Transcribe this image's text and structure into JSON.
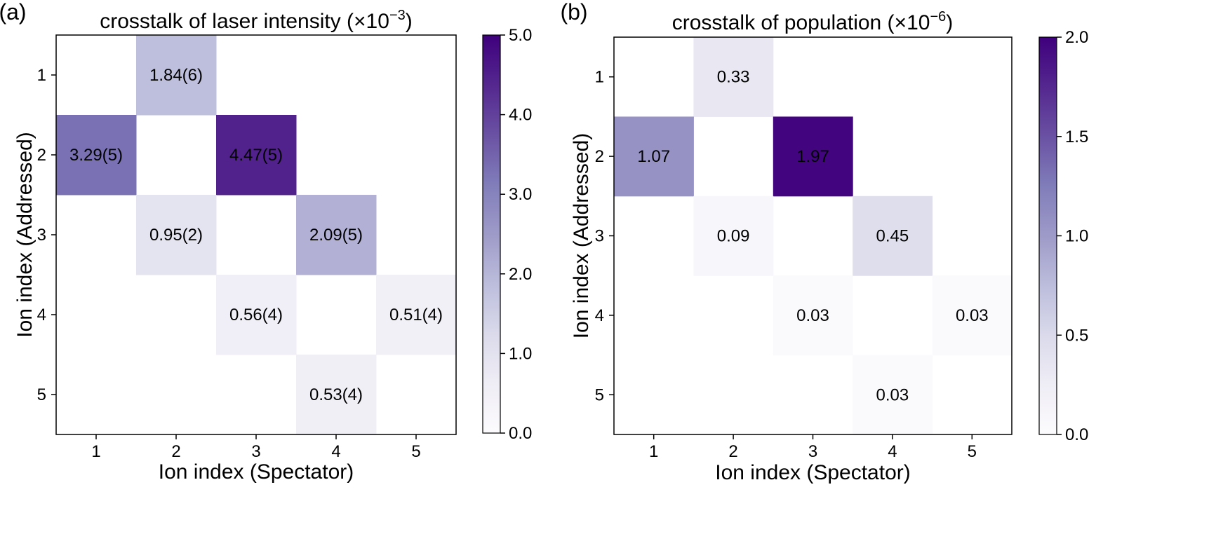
{
  "chart_data": [
    {
      "type": "heatmap",
      "panel_label": "(a)",
      "title": "crosstalk of laser intensity (×10",
      "title_exponent": "−3",
      "title_suffix": ")",
      "xlabel": "Ion index (Spectator)",
      "ylabel": "Ion index (Addressed)",
      "x_categories": [
        "1",
        "2",
        "3",
        "4",
        "5"
      ],
      "y_categories": [
        "1",
        "2",
        "3",
        "4",
        "5"
      ],
      "colorbar": {
        "range": [
          0,
          5
        ],
        "ticks": [
          "0.0",
          "1.0",
          "2.0",
          "3.0",
          "4.0",
          "5.0"
        ],
        "colormap": [
          "#fcfbfd",
          "#3f007d"
        ]
      },
      "cells": [
        {
          "row": 1,
          "col": 2,
          "value": 1.84,
          "label": "1.84(6)"
        },
        {
          "row": 2,
          "col": 1,
          "value": 3.29,
          "label": "3.29(5)"
        },
        {
          "row": 2,
          "col": 3,
          "value": 4.47,
          "label": "4.47(5)"
        },
        {
          "row": 3,
          "col": 2,
          "value": 0.95,
          "label": "0.95(2)"
        },
        {
          "row": 3,
          "col": 4,
          "value": 2.09,
          "label": "2.09(5)"
        },
        {
          "row": 4,
          "col": 3,
          "value": 0.56,
          "label": "0.56(4)"
        },
        {
          "row": 4,
          "col": 5,
          "value": 0.51,
          "label": "0.51(4)"
        },
        {
          "row": 5,
          "col": 4,
          "value": 0.53,
          "label": "0.53(4)"
        }
      ]
    },
    {
      "type": "heatmap",
      "panel_label": "(b)",
      "title": "crosstalk of population (×10",
      "title_exponent": "−6",
      "title_suffix": ")",
      "xlabel": "Ion index (Spectator)",
      "ylabel": "Ion index (Addressed)",
      "x_categories": [
        "1",
        "2",
        "3",
        "4",
        "5"
      ],
      "y_categories": [
        "1",
        "2",
        "3",
        "4",
        "5"
      ],
      "colorbar": {
        "range": [
          0,
          2
        ],
        "ticks": [
          "0.0",
          "0.5",
          "1.0",
          "1.5",
          "2.0"
        ],
        "colormap": [
          "#fcfbfd",
          "#3f007d"
        ]
      },
      "cells": [
        {
          "row": 1,
          "col": 2,
          "value": 0.33,
          "label": "0.33"
        },
        {
          "row": 2,
          "col": 1,
          "value": 1.07,
          "label": "1.07"
        },
        {
          "row": 2,
          "col": 3,
          "value": 1.97,
          "label": "1.97"
        },
        {
          "row": 3,
          "col": 2,
          "value": 0.09,
          "label": "0.09"
        },
        {
          "row": 3,
          "col": 4,
          "value": 0.45,
          "label": "0.45"
        },
        {
          "row": 4,
          "col": 3,
          "value": 0.03,
          "label": "0.03"
        },
        {
          "row": 4,
          "col": 5,
          "value": 0.03,
          "label": "0.03"
        },
        {
          "row": 5,
          "col": 4,
          "value": 0.03,
          "label": "0.03"
        }
      ]
    }
  ]
}
